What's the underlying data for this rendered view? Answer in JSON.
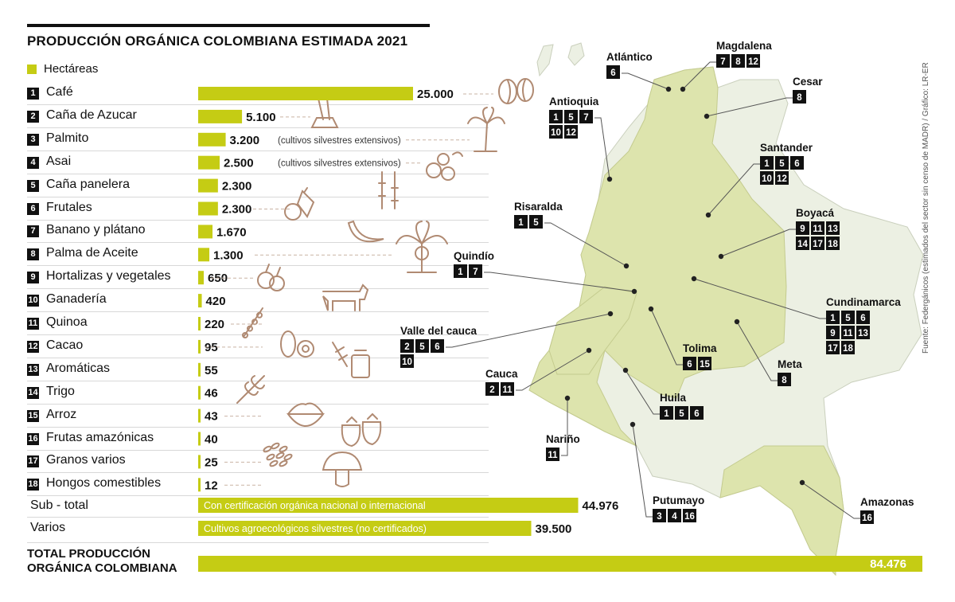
{
  "title": "PRODUCCIÓN ORGÁNICA COLOMBIANA ESTIMADA  2021",
  "legend": {
    "label": "Hectáreas",
    "color": "#c5cc14"
  },
  "notes": {
    "silvestres": "(cultivos silvestres extensivos)"
  },
  "chart_data": {
    "type": "bar",
    "orientation": "horizontal",
    "categories": [
      "Café",
      "Caña de Azucar",
      "Palmito",
      "Asai",
      "Caña panelera",
      "Frutales",
      "Banano y plátano",
      "Palma de Aceite",
      "Hortalizas y vegetales",
      "Ganadería",
      "Quinoa",
      "Cacao",
      "Aromáticas",
      "Trigo",
      "Arroz",
      "Frutas amazónicas",
      "Granos varios",
      "Hongos comestibles"
    ],
    "ids": [
      "1",
      "2",
      "3",
      "4",
      "5",
      "6",
      "7",
      "8",
      "9",
      "10",
      "11",
      "12",
      "13",
      "14",
      "15",
      "16",
      "17",
      "18"
    ],
    "values": [
      25000,
      5100,
      3200,
      2500,
      2300,
      2300,
      1670,
      1300,
      650,
      420,
      220,
      95,
      55,
      46,
      43,
      40,
      25,
      12
    ],
    "value_labels": [
      "25.000",
      "5.100",
      "3.200",
      "2.500",
      "2.300",
      "2.300",
      "1.670",
      "1.300",
      "650",
      "420",
      "220",
      "95",
      "55",
      "46",
      "43",
      "40",
      "25",
      "12"
    ],
    "icons": [
      "coffee-bean-icon",
      "sugar-cane-icon",
      "palm-tree-icon",
      "acai-berry-icon",
      "cane-stalk-icon",
      "fruit-basket-icon",
      "banana-icon",
      "oil-palm-icon",
      "vegetables-icon",
      "cow-icon",
      "quinoa-icon",
      "cacao-icon",
      "herbs-jar-icon",
      "wheat-icon",
      "rice-bowl-icon",
      "strawberry-icon",
      "grains-icon",
      "mushroom-icon"
    ],
    "summary": [
      {
        "label": "Sub - total",
        "bar_text": "Con certificación orgánica nacional o internacional",
        "value": 44976,
        "value_label": "44.976"
      },
      {
        "label": "Varios",
        "bar_text": "Cultivos agroecológicos silvestres (no certificados)",
        "value": 39500,
        "value_label": "39.500"
      }
    ],
    "total": {
      "label_line1": "TOTAL PRODUCCIÓN",
      "label_line2": "ORGÁNICA COLOMBIANA",
      "value": 84476,
      "value_label": "84.476"
    }
  },
  "map": {
    "regions": [
      {
        "name": "Atlántico",
        "ids": [
          "6"
        ]
      },
      {
        "name": "Magdalena",
        "ids": [
          "7",
          "8",
          "12"
        ]
      },
      {
        "name": "Cesar",
        "ids": [
          "8"
        ]
      },
      {
        "name": "Antioquia",
        "ids": [
          "1",
          "5",
          "7",
          "10",
          "12"
        ]
      },
      {
        "name": "Santander",
        "ids": [
          "1",
          "5",
          "6",
          "10",
          "12"
        ]
      },
      {
        "name": "Risaralda",
        "ids": [
          "1",
          "5"
        ]
      },
      {
        "name": "Boyacá",
        "ids": [
          "9",
          "11",
          "13",
          "14",
          "17",
          "18"
        ]
      },
      {
        "name": "Quindío",
        "ids": [
          "1",
          "7"
        ]
      },
      {
        "name": "Cundinamarca",
        "ids": [
          "1",
          "5",
          "6",
          "9",
          "11",
          "13",
          "17",
          "18"
        ]
      },
      {
        "name": "Valle del cauca",
        "ids": [
          "2",
          "5",
          "6",
          "10"
        ]
      },
      {
        "name": "Tolima",
        "ids": [
          "6",
          "15"
        ]
      },
      {
        "name": "Meta",
        "ids": [
          "8"
        ]
      },
      {
        "name": "Cauca",
        "ids": [
          "2",
          "11"
        ]
      },
      {
        "name": "Huila",
        "ids": [
          "1",
          "5",
          "6"
        ]
      },
      {
        "name": "Nariño",
        "ids": [
          "11"
        ]
      },
      {
        "name": "Putumayo",
        "ids": [
          "3",
          "4",
          "16"
        ]
      },
      {
        "name": "Amazonas",
        "ids": [
          "16"
        ]
      }
    ]
  },
  "source": "Fuente: Federgánicos (estimados del sector sin  censo de MADR) / Gráfico: LR-ER"
}
